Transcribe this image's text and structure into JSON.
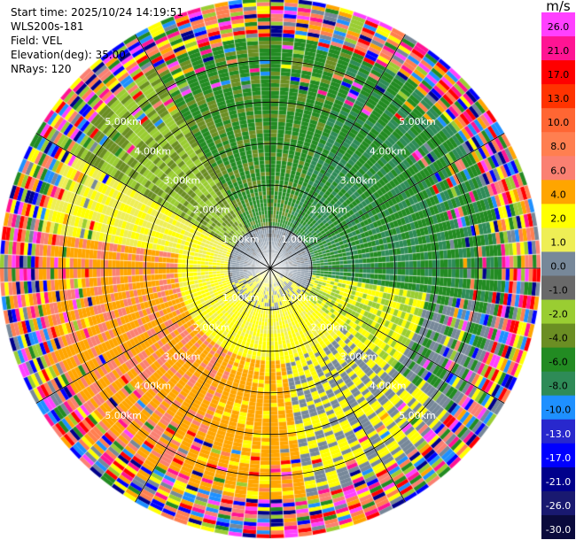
{
  "header": {
    "start_time": "Start time: 2025/10/24 14:19:51",
    "instrument": "WLS200s-181",
    "field": "Field: VEL",
    "elevation": "Elevation(deg): 35.00",
    "nrays": "NRays: 120"
  },
  "colorbar": {
    "unit": "m/s",
    "ticks": [
      "26.0",
      "21.0",
      "17.0",
      "13.0",
      "10.0",
      "8.0",
      "6.0",
      "4.0",
      "2.0",
      "1.0",
      "0.0",
      "-1.0",
      "-2.0",
      "-4.0",
      "-6.0",
      "-8.0",
      "-10.0",
      "-13.0",
      "-17.0",
      "-21.0",
      "-26.0",
      "-30.0"
    ],
    "colors": [
      "#ff40ff",
      "#ff1493",
      "#ff0000",
      "#ff3300",
      "#ff6633",
      "#ff7f50",
      "#fa8072",
      "#ffa500",
      "#ffff00",
      "#eeee55",
      "#778899",
      "#696969",
      "#9acd32",
      "#6b8e23",
      "#228b22",
      "#2e8b57",
      "#1e90ff",
      "#2828cd",
      "#0000ff",
      "#00008b",
      "#191970",
      "#0a0a3c"
    ]
  },
  "chart_data": {
    "type": "heatmap",
    "subtype": "polar PPI (plan position indicator)",
    "field": "VEL",
    "units": "m/s",
    "nrays": 120,
    "elevation_deg": 35.0,
    "range_rings_km": [
      1.0,
      2.0,
      3.0,
      4.0,
      5.0
    ],
    "range_ring_labels": [
      "1.00km",
      "2.00km",
      "3.00km",
      "4.00km",
      "5.00km"
    ],
    "max_range_km": 6.5,
    "spokes_deg": [
      0,
      30,
      60,
      90,
      120,
      150,
      180,
      210,
      240,
      270,
      300,
      330
    ],
    "pattern": "approximate: gray (0 to -1 m/s) near center; green (-4 to -8 m/s) in the north/north-east sector; yellow-orange (2 to 6 m/s) in the south-west sector; noisy multi-color speckle beyond about 5.5 km"
  }
}
